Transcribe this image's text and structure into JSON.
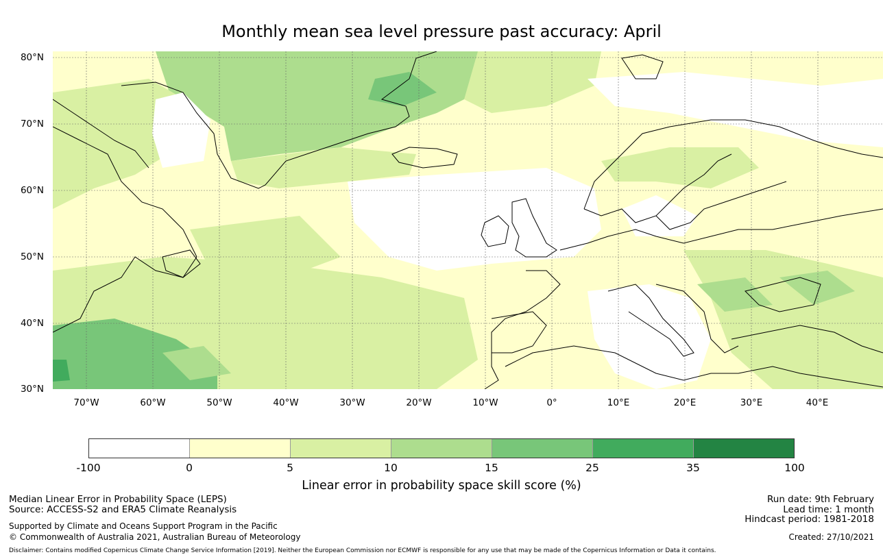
{
  "title": "Monthly mean sea level pressure past accuracy: April",
  "map": {
    "latitude_labels": [
      "80°N",
      "70°N",
      "60°N",
      "50°N",
      "40°N",
      "30°N"
    ],
    "longitude_labels": [
      "70°W",
      "60°W",
      "50°W",
      "40°W",
      "30°W",
      "20°W",
      "10°W",
      "0°",
      "10°E",
      "20°E",
      "30°E",
      "40°E"
    ],
    "colors": {
      "land_outline": "#000000",
      "gridline": "#666666"
    }
  },
  "colorbar": {
    "colors": [
      "#ffffff",
      "#ffffcc",
      "#d9f0a3",
      "#addd8e",
      "#78c679",
      "#41ab5d",
      "#238443"
    ],
    "tick_labels": [
      "-100",
      "0",
      "5",
      "10",
      "15",
      "25",
      "35",
      "100"
    ],
    "label": "Linear error in probability space skill score (%)"
  },
  "footer": {
    "left_line1": "Median Linear Error in Probability Space (LEPS)",
    "left_line2": "Source: ACCESS-S2 and ERA5 Climate Reanalysis",
    "left_line3": "Supported by Climate and Oceans Support Program in the Pacific",
    "left_line4": "© Commonwealth of Australia 2021, Australian Bureau of Meteorology",
    "right_line1": "Run date: 9th February",
    "right_line2": "Lead time: 1 month",
    "right_line3": "Hindcast period: 1981-2018",
    "right_line4": "Created: 27/10/2021",
    "disclaimer": "Disclaimer: Contains modified Copernicus Climate Change Service Information [2019]. Neither the European Commission nor ECMWF is responsible for any use that may be made of the Copernicus Information or Data it contains."
  }
}
